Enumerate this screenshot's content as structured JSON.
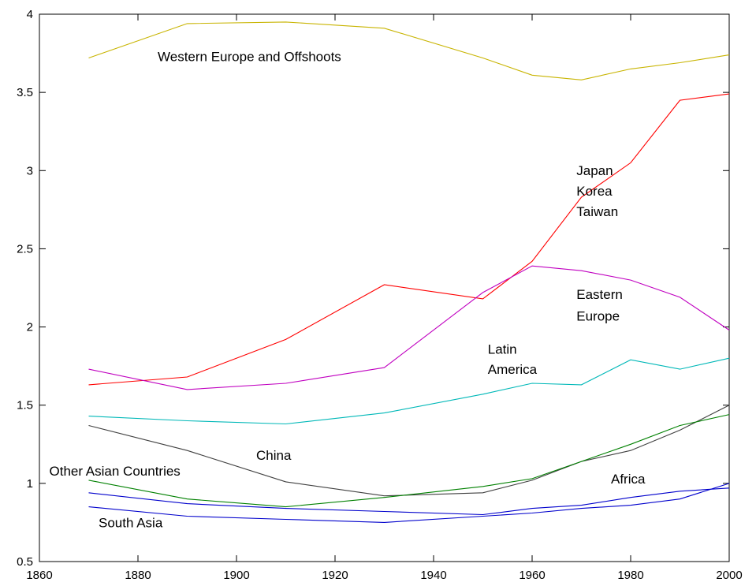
{
  "chart_data": {
    "type": "line",
    "title": "",
    "xlabel": "",
    "ylabel": "",
    "xlim": [
      1860,
      2000
    ],
    "ylim": [
      0.5,
      4
    ],
    "grid": false,
    "legend": "none",
    "x_ticks": [
      "1860",
      "1880",
      "1900",
      "1920",
      "1940",
      "1960",
      "1980",
      "2000"
    ],
    "y_ticks": [
      "0.5",
      "1",
      "1.5",
      "2",
      "2.5",
      "3",
      "3.5",
      "4"
    ],
    "x": [
      1870,
      1890,
      1910,
      1930,
      1950,
      1960,
      1970,
      1980,
      1990,
      2000
    ],
    "series": [
      {
        "color": "#c8b400",
        "values": [
          3.72,
          3.94,
          3.95,
          3.91,
          3.72,
          3.61,
          3.58,
          3.65,
          3.69,
          3.74
        ]
      },
      {
        "color": "#ff0000",
        "values": [
          1.63,
          1.68,
          1.92,
          2.27,
          2.18,
          2.42,
          2.83,
          3.05,
          3.45,
          3.49
        ]
      },
      {
        "color": "#c000c0",
        "values": [
          1.73,
          1.6,
          1.64,
          1.74,
          2.22,
          2.39,
          2.36,
          2.3,
          2.19,
          1.98
        ]
      },
      {
        "color": "#00b8b8",
        "values": [
          1.43,
          1.4,
          1.38,
          1.45,
          1.57,
          1.64,
          1.63,
          1.79,
          1.73,
          1.8
        ]
      },
      {
        "color": "#404040",
        "values": [
          1.37,
          1.21,
          1.01,
          0.92,
          0.94,
          1.02,
          1.14,
          1.21,
          1.34,
          1.5
        ]
      },
      {
        "color": "#008000",
        "values": [
          1.02,
          0.9,
          0.85,
          0.91,
          0.98,
          1.03,
          1.14,
          1.25,
          1.37,
          1.44
        ]
      },
      {
        "color": "#0000cc",
        "values": [
          0.94,
          0.87,
          0.84,
          0.82,
          0.8,
          0.84,
          0.86,
          0.91,
          0.95,
          0.97
        ]
      },
      {
        "color": "#0000cc",
        "values": [
          0.85,
          0.79,
          0.77,
          0.75,
          0.79,
          0.81,
          0.84,
          0.86,
          0.9,
          1.0
        ]
      }
    ],
    "annotations": [
      {
        "text": "Western Europe and Offshoots",
        "x": 1884,
        "y": 3.7
      },
      {
        "text": "Japan",
        "x": 1969,
        "y": 2.97
      },
      {
        "text": "Korea",
        "x": 1969,
        "y": 2.84
      },
      {
        "text": "Taiwan",
        "x": 1969,
        "y": 2.71
      },
      {
        "text": "Eastern",
        "x": 1969,
        "y": 2.18
      },
      {
        "text": "Europe",
        "x": 1969,
        "y": 2.04
      },
      {
        "text": "Latin",
        "x": 1951,
        "y": 1.83
      },
      {
        "text": "America",
        "x": 1951,
        "y": 1.7
      },
      {
        "text": "China",
        "x": 1904,
        "y": 1.15
      },
      {
        "text": "Other Asian Countries",
        "x": 1862,
        "y": 1.05
      },
      {
        "text": "Africa",
        "x": 1976,
        "y": 1.0
      },
      {
        "text": "South Asia",
        "x": 1872,
        "y": 0.72
      }
    ]
  }
}
